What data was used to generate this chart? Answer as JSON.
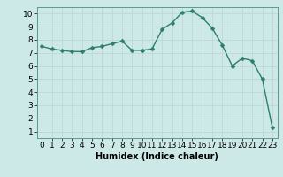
{
  "x": [
    0,
    1,
    2,
    3,
    4,
    5,
    6,
    7,
    8,
    9,
    10,
    11,
    12,
    13,
    14,
    15,
    16,
    17,
    18,
    19,
    20,
    21,
    22,
    23
  ],
  "y": [
    7.5,
    7.3,
    7.2,
    7.1,
    7.1,
    7.4,
    7.5,
    7.7,
    7.9,
    7.2,
    7.2,
    7.3,
    8.8,
    9.3,
    10.1,
    10.2,
    9.7,
    8.9,
    7.6,
    6.0,
    6.6,
    6.4,
    5.0,
    1.3
  ],
  "title": "",
  "xlabel": "Humidex (Indice chaleur)",
  "xlim": [
    -0.5,
    23.5
  ],
  "ylim": [
    0.5,
    10.5
  ],
  "yticks": [
    1,
    2,
    3,
    4,
    5,
    6,
    7,
    8,
    9,
    10
  ],
  "xticks": [
    0,
    1,
    2,
    3,
    4,
    5,
    6,
    7,
    8,
    9,
    10,
    11,
    12,
    13,
    14,
    15,
    16,
    17,
    18,
    19,
    20,
    21,
    22,
    23
  ],
  "line_color": "#2e7d6e",
  "marker_color": "#2e7d6e",
  "bg_color": "#cce9e7",
  "grid_color": "#c0d8d5",
  "xlabel_fontsize": 7,
  "tick_fontsize": 6.5,
  "line_width": 1.0,
  "marker_size": 2.5
}
